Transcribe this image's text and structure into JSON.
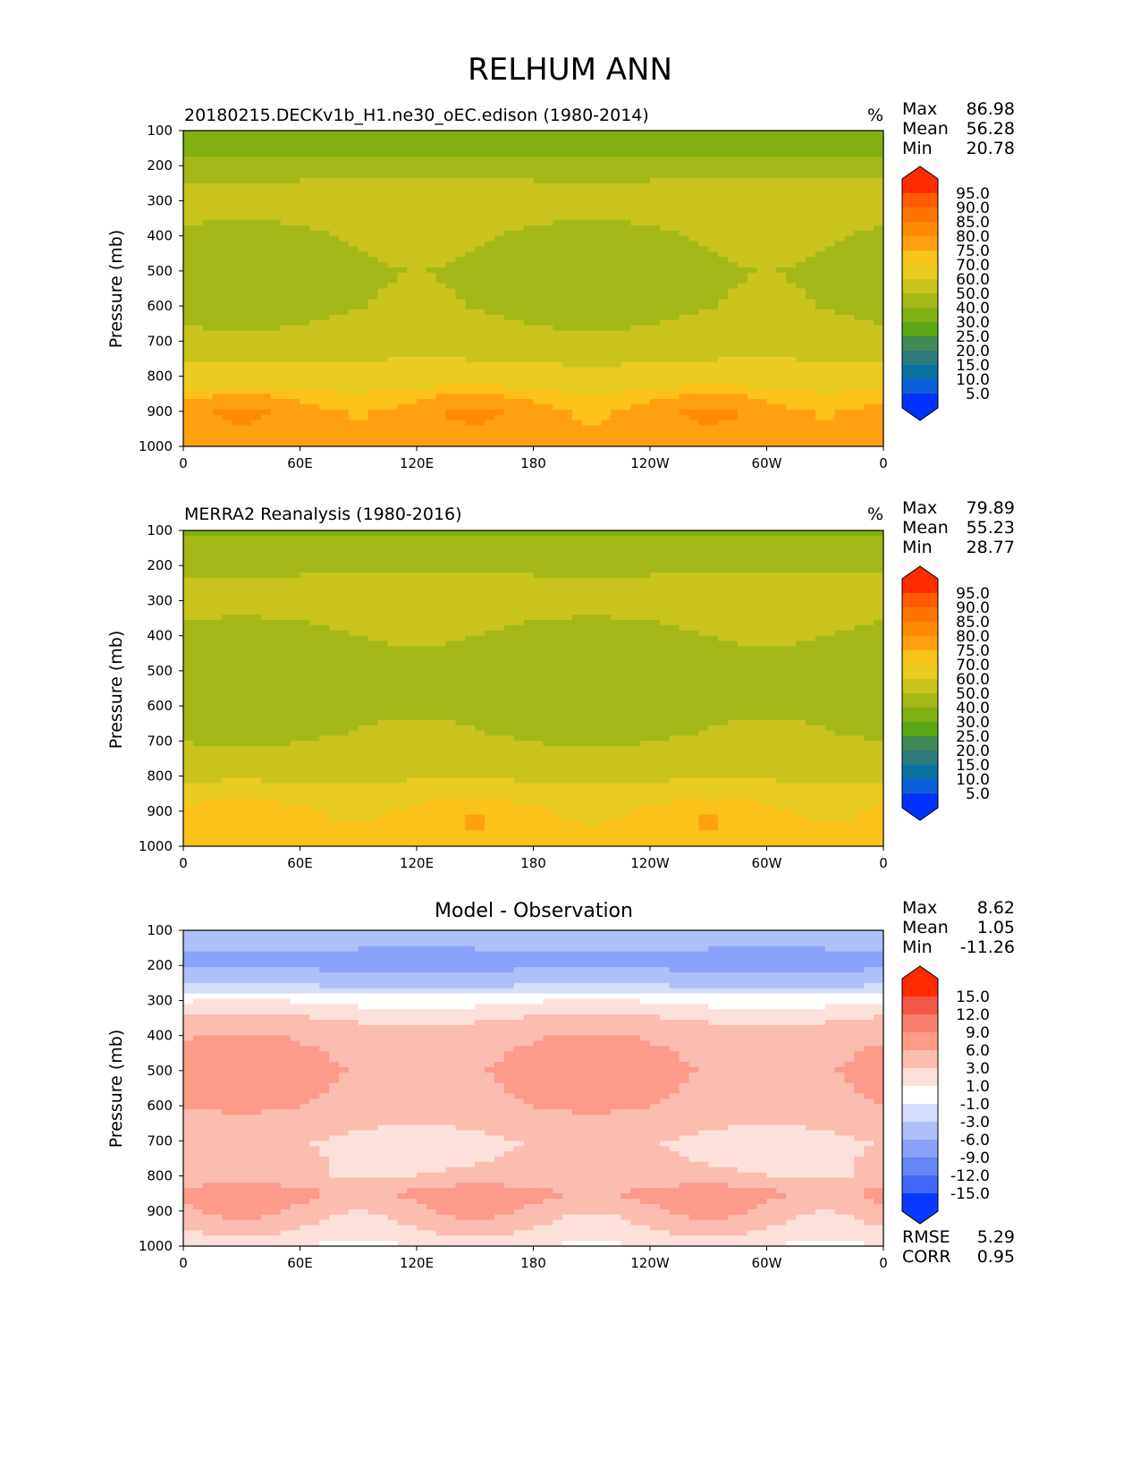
{
  "suptitle": "RELHUM ANN",
  "chart_data": [
    {
      "type": "heatmap",
      "title": "20180215.DECKv1b_H1.ne30_oEC.edison (1980-2014)",
      "units": "%",
      "ylabel": "Pressure (mb)",
      "x_ticks": [
        "0",
        "60E",
        "120E",
        "180",
        "120W",
        "60W",
        "0"
      ],
      "y_ticks": [
        "100",
        "200",
        "300",
        "400",
        "500",
        "600",
        "700",
        "800",
        "900",
        "1000"
      ],
      "ylim": [
        1000,
        100
      ],
      "stats": [
        {
          "label": "Max",
          "value": "86.98"
        },
        {
          "label": "Mean",
          "value": "56.28"
        },
        {
          "label": "Min",
          "value": "20.78"
        }
      ],
      "levels": [
        "95.0",
        "90.0",
        "85.0",
        "80.0",
        "75.0",
        "70.0",
        "60.0",
        "50.0",
        "40.0",
        "30.0",
        "25.0",
        "20.0",
        "15.0",
        "10.0",
        "5.0"
      ],
      "colors": [
        "#ff2a00",
        "#ff5a00",
        "#ff7400",
        "#ff8c00",
        "#ffa010",
        "#fbc21a",
        "#e8cc22",
        "#c9c41c",
        "#a4b918",
        "#82b012",
        "#5aa714",
        "#3f8a58",
        "#2a7a7a",
        "#0a72a0",
        "#0a5ed8",
        "#0033ff"
      ],
      "profile": [
        {
          "p": 100,
          "v": 35
        },
        {
          "p": 150,
          "v": 33
        },
        {
          "p": 200,
          "v": 45
        },
        {
          "p": 250,
          "v": 52
        },
        {
          "p": 300,
          "v": 55
        },
        {
          "p": 400,
          "v": 52
        },
        {
          "p": 500,
          "v": 50
        },
        {
          "p": 600,
          "v": 51
        },
        {
          "p": 700,
          "v": 55
        },
        {
          "p": 800,
          "v": 65
        },
        {
          "p": 850,
          "v": 73
        },
        {
          "p": 900,
          "v": 78
        },
        {
          "p": 1000,
          "v": 77
        }
      ]
    },
    {
      "type": "heatmap",
      "title": "MERRA2 Reanalysis (1980-2016)",
      "units": "%",
      "ylabel": "Pressure (mb)",
      "x_ticks": [
        "0",
        "60E",
        "120E",
        "180",
        "120W",
        "60W",
        "0"
      ],
      "y_ticks": [
        "100",
        "200",
        "300",
        "400",
        "500",
        "600",
        "700",
        "800",
        "900",
        "1000"
      ],
      "ylim": [
        1000,
        100
      ],
      "stats": [
        {
          "label": "Max",
          "value": "79.89"
        },
        {
          "label": "Mean",
          "value": "55.23"
        },
        {
          "label": "Min",
          "value": "28.77"
        }
      ],
      "levels": [
        "95.0",
        "90.0",
        "85.0",
        "80.0",
        "75.0",
        "70.0",
        "60.0",
        "50.0",
        "40.0",
        "30.0",
        "25.0",
        "20.0",
        "15.0",
        "10.0",
        "5.0"
      ],
      "colors": [
        "#ff2a00",
        "#ff5a00",
        "#ff7400",
        "#ff8c00",
        "#ffa010",
        "#fbc21a",
        "#e8cc22",
        "#c9c41c",
        "#a4b918",
        "#82b012",
        "#5aa714",
        "#3f8a58",
        "#2a7a7a",
        "#0a72a0",
        "#0a5ed8",
        "#0033ff"
      ],
      "profile": [
        {
          "p": 100,
          "v": 38
        },
        {
          "p": 150,
          "v": 43
        },
        {
          "p": 200,
          "v": 48
        },
        {
          "p": 250,
          "v": 53
        },
        {
          "p": 300,
          "v": 55
        },
        {
          "p": 400,
          "v": 51
        },
        {
          "p": 500,
          "v": 48
        },
        {
          "p": 600,
          "v": 49
        },
        {
          "p": 700,
          "v": 52
        },
        {
          "p": 800,
          "v": 58
        },
        {
          "p": 850,
          "v": 67
        },
        {
          "p": 900,
          "v": 72
        },
        {
          "p": 1000,
          "v": 74
        }
      ]
    },
    {
      "type": "heatmap",
      "title": "Model - Observation",
      "units": "",
      "ylabel": "Pressure (mb)",
      "x_ticks": [
        "0",
        "60E",
        "120E",
        "180",
        "120W",
        "60W",
        "0"
      ],
      "y_ticks": [
        "100",
        "200",
        "300",
        "400",
        "500",
        "600",
        "700",
        "800",
        "900",
        "1000"
      ],
      "ylim": [
        1000,
        100
      ],
      "stats": [
        {
          "label": "Max",
          "value": "8.62"
        },
        {
          "label": "Mean",
          "value": "1.05"
        },
        {
          "label": "Min",
          "value": "-11.26"
        }
      ],
      "extra_stats": [
        {
          "label": "RMSE",
          "value": "5.29"
        },
        {
          "label": "CORR",
          "value": "0.95"
        }
      ],
      "levels": [
        "15.0",
        "12.0",
        "9.0",
        "6.0",
        "3.0",
        "1.0",
        "-1.0",
        "-3.0",
        "-6.0",
        "-9.0",
        "-12.0",
        "-15.0"
      ],
      "colors": [
        "#ff2a00",
        "#f25845",
        "#f97f6e",
        "#fb9b88",
        "#fcbcb0",
        "#fde0db",
        "#ffffff",
        "#d6defb",
        "#aebffa",
        "#8aa2f9",
        "#6584f8",
        "#3f66f7",
        "#0a3aff"
      ],
      "profile": [
        {
          "p": 100,
          "v": -4
        },
        {
          "p": 150,
          "v": -6
        },
        {
          "p": 200,
          "v": -7
        },
        {
          "p": 250,
          "v": -4
        },
        {
          "p": 300,
          "v": 0
        },
        {
          "p": 400,
          "v": 4
        },
        {
          "p": 500,
          "v": 5
        },
        {
          "p": 600,
          "v": 4
        },
        {
          "p": 700,
          "v": 2
        },
        {
          "p": 800,
          "v": 3
        },
        {
          "p": 850,
          "v": 7
        },
        {
          "p": 900,
          "v": 5
        },
        {
          "p": 1000,
          "v": 1
        }
      ]
    }
  ]
}
